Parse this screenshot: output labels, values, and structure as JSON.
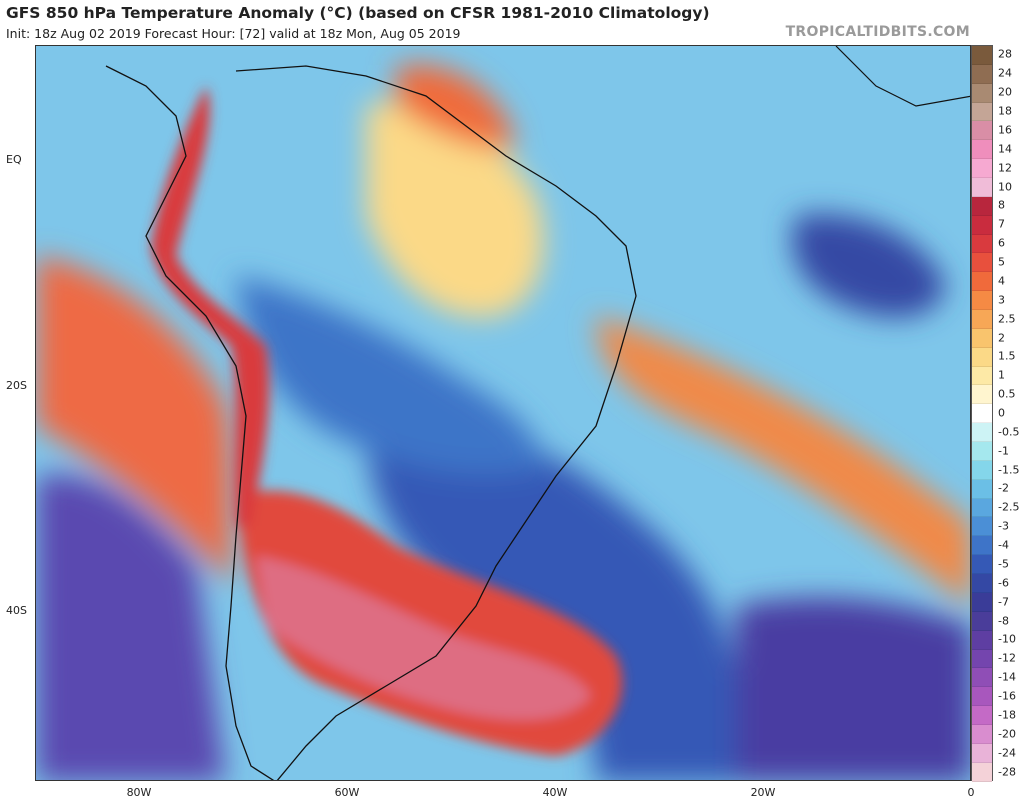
{
  "header": {
    "title": "GFS 850 hPa Temperature Anomaly (°C) (based on CFSR 1981-2010 Climatology)",
    "subtitle": "Init: 18z Aug 02 2019   Forecast Hour: [72]   valid at 18z Mon, Aug 05 2019",
    "brand": "TROPICALTIDBITS.COM"
  },
  "map": {
    "lon_ticks": [
      "80W",
      "60W",
      "40W",
      "20W",
      "0"
    ],
    "lat_ticks": [
      "EQ",
      "20S",
      "40S"
    ],
    "region": "South America and South Atlantic"
  },
  "colorbar": {
    "labels": [
      "28",
      "24",
      "20",
      "18",
      "16",
      "14",
      "12",
      "10",
      "8",
      "7",
      "6",
      "5",
      "4",
      "3",
      "2.5",
      "2",
      "1.5",
      "1",
      "0.5",
      "0",
      "-0.5",
      "-1",
      "-1.5",
      "-2",
      "-2.5",
      "-3",
      "-4",
      "-5",
      "-6",
      "-7",
      "-8",
      "-10",
      "-12",
      "-14",
      "-16",
      "-18",
      "-20",
      "-24",
      "-28"
    ],
    "colors": [
      "#7a5a3c",
      "#8f6d52",
      "#a98a72",
      "#c4a596",
      "#d98ea6",
      "#ef8ebc",
      "#f6a9d1",
      "#f0bcd8",
      "#b8263d",
      "#c92c3e",
      "#d93a3e",
      "#e8503d",
      "#f06a3b",
      "#f58a44",
      "#f7a756",
      "#f9c46d",
      "#fbd987",
      "#fde9a6",
      "#fff5cf",
      "#ffffff",
      "#cdf3f5",
      "#a5e8ee",
      "#84d6ea",
      "#6bbfe6",
      "#5aa7df",
      "#4b8fd6",
      "#3e74c8",
      "#3559b6",
      "#3448a4",
      "#3a3c98",
      "#4a3d9a",
      "#5e3ea2",
      "#7445ae",
      "#8f4eb6",
      "#a857bd",
      "#c46ac6",
      "#d98dcf",
      "#e9b3d8",
      "#f4d2d8"
    ]
  }
}
